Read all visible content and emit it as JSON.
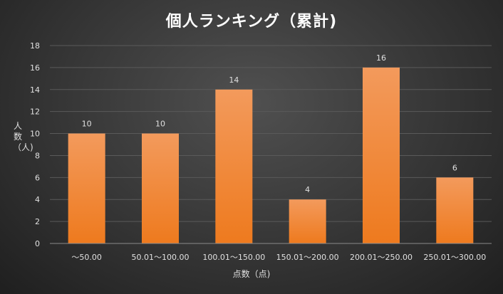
{
  "chart_data": {
    "type": "bar",
    "title": "個人ランキング（累計)",
    "xlabel": "点数（点)",
    "ylabel": "人数（人)",
    "categories": [
      "～50.00",
      "50.01～100.00",
      "100.01～150.00",
      "150.01～200.00",
      "200.01～250.00",
      "250.01～300.00"
    ],
    "values": [
      10,
      10,
      14,
      4,
      16,
      6
    ],
    "ylim": [
      0,
      18
    ],
    "yticks": [
      0,
      2,
      4,
      6,
      8,
      10,
      12,
      14,
      16,
      18
    ],
    "grid": true,
    "data_labels": true,
    "colors": {
      "bar_top": "#f39a5c",
      "bar_bottom": "#ee7a1e",
      "grid": "#5a5a5a",
      "axis": "#8a8a8a",
      "text": "#e0e0e0"
    }
  }
}
